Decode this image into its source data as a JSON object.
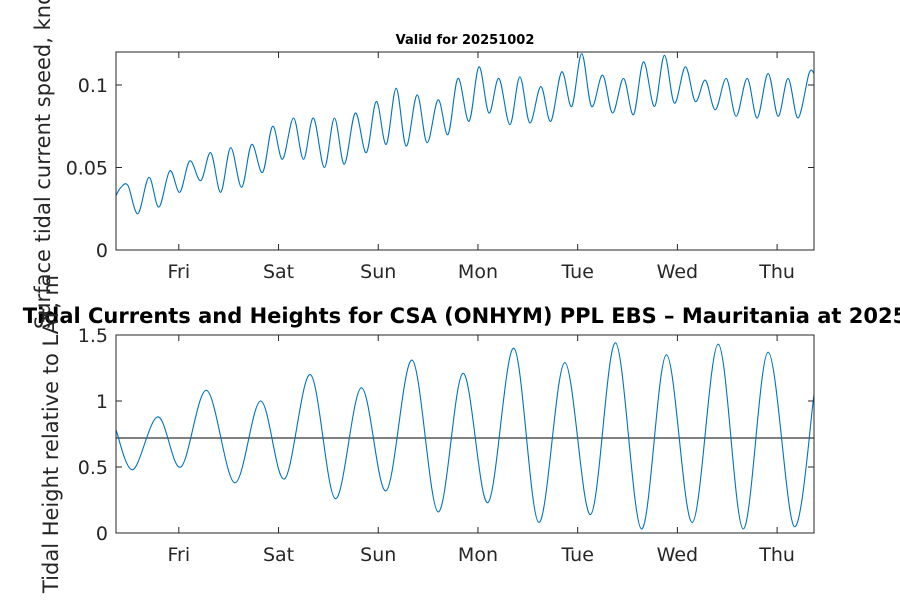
{
  "chart_data": [
    {
      "type": "line",
      "title": "Valid for 20251002",
      "xlabel": "",
      "ylabel": "Surface tidal current speed, knots",
      "x_tick_labels": [
        "Fri",
        "Sat",
        "Sun",
        "Mon",
        "Tue",
        "Wed",
        "Thu"
      ],
      "x_tick_days": [
        0.63,
        1.63,
        2.63,
        3.63,
        4.63,
        5.63,
        6.63
      ],
      "xlim_days": [
        0,
        7
      ],
      "ylim": [
        0,
        0.12
      ],
      "y_ticks": [
        0,
        0.05,
        0.1
      ],
      "y_tick_labels": [
        "0",
        "0.05",
        "0.1"
      ],
      "series": [
        {
          "name": "Surface tidal current speed",
          "color": "#0072BD",
          "x": [
            0.0,
            0.05,
            0.12,
            0.22,
            0.33,
            0.43,
            0.54,
            0.64,
            0.74,
            0.85,
            0.95,
            1.05,
            1.15,
            1.26,
            1.36,
            1.47,
            1.57,
            1.67,
            1.78,
            1.88,
            1.98,
            2.09,
            2.19,
            2.29,
            2.4,
            2.51,
            2.61,
            2.71,
            2.81,
            2.91,
            3.02,
            3.12,
            3.23,
            3.33,
            3.43,
            3.54,
            3.64,
            3.74,
            3.84,
            3.95,
            4.05,
            4.15,
            4.26,
            4.36,
            4.47,
            4.57,
            4.67,
            4.77,
            4.88,
            4.98,
            5.09,
            5.19,
            5.29,
            5.4,
            5.5,
            5.6,
            5.71,
            5.81,
            5.91,
            6.01,
            6.12,
            6.22,
            6.33,
            6.43,
            6.54,
            6.64,
            6.74,
            6.84,
            6.95,
            7.0
          ],
          "values": [
            0.033,
            0.038,
            0.039,
            0.022,
            0.044,
            0.026,
            0.048,
            0.035,
            0.054,
            0.042,
            0.059,
            0.035,
            0.062,
            0.038,
            0.064,
            0.047,
            0.075,
            0.055,
            0.08,
            0.055,
            0.08,
            0.05,
            0.08,
            0.052,
            0.083,
            0.059,
            0.09,
            0.064,
            0.098,
            0.063,
            0.094,
            0.065,
            0.091,
            0.07,
            0.104,
            0.078,
            0.111,
            0.083,
            0.104,
            0.076,
            0.105,
            0.077,
            0.099,
            0.078,
            0.108,
            0.087,
            0.119,
            0.087,
            0.106,
            0.083,
            0.104,
            0.082,
            0.114,
            0.087,
            0.118,
            0.089,
            0.111,
            0.09,
            0.103,
            0.085,
            0.104,
            0.081,
            0.104,
            0.08,
            0.107,
            0.081,
            0.104,
            0.08,
            0.107,
            0.107
          ]
        }
      ]
    },
    {
      "type": "line",
      "title": "Tidal Currents and Heights for CSA (ONHYM) PPL EBS  – Mauritania at 2025",
      "xlabel": "",
      "ylabel": "Tidal Height relative to LAT, m",
      "x_tick_labels": [
        "Fri",
        "Sat",
        "Sun",
        "Mon",
        "Tue",
        "Wed",
        "Thu"
      ],
      "x_tick_days": [
        0.63,
        1.63,
        2.63,
        3.63,
        4.63,
        5.63,
        6.63
      ],
      "xlim_days": [
        0,
        7
      ],
      "ylim": [
        0,
        1.5
      ],
      "y_ticks": [
        0,
        0.5,
        1,
        1.5
      ],
      "y_tick_labels": [
        "0",
        "0.5",
        "1",
        "1.5"
      ],
      "reference_line": {
        "value": 0.72,
        "color": "#000000"
      },
      "series": [
        {
          "name": "Tidal height",
          "color": "#0072BD",
          "x": [
            0.0,
            0.17,
            0.42,
            0.65,
            0.91,
            1.19,
            1.45,
            1.69,
            1.95,
            2.2,
            2.46,
            2.71,
            2.97,
            3.23,
            3.48,
            3.73,
            3.99,
            4.24,
            4.5,
            4.76,
            5.01,
            5.27,
            5.52,
            5.78,
            6.04,
            6.29,
            6.54,
            6.8,
            7.0
          ],
          "values": [
            0.78,
            0.48,
            0.88,
            0.5,
            1.08,
            0.38,
            1.0,
            0.41,
            1.2,
            0.26,
            1.1,
            0.32,
            1.31,
            0.16,
            1.21,
            0.23,
            1.4,
            0.08,
            1.29,
            0.14,
            1.44,
            0.03,
            1.35,
            0.08,
            1.43,
            0.03,
            1.37,
            0.05,
            1.05
          ]
        }
      ]
    }
  ]
}
